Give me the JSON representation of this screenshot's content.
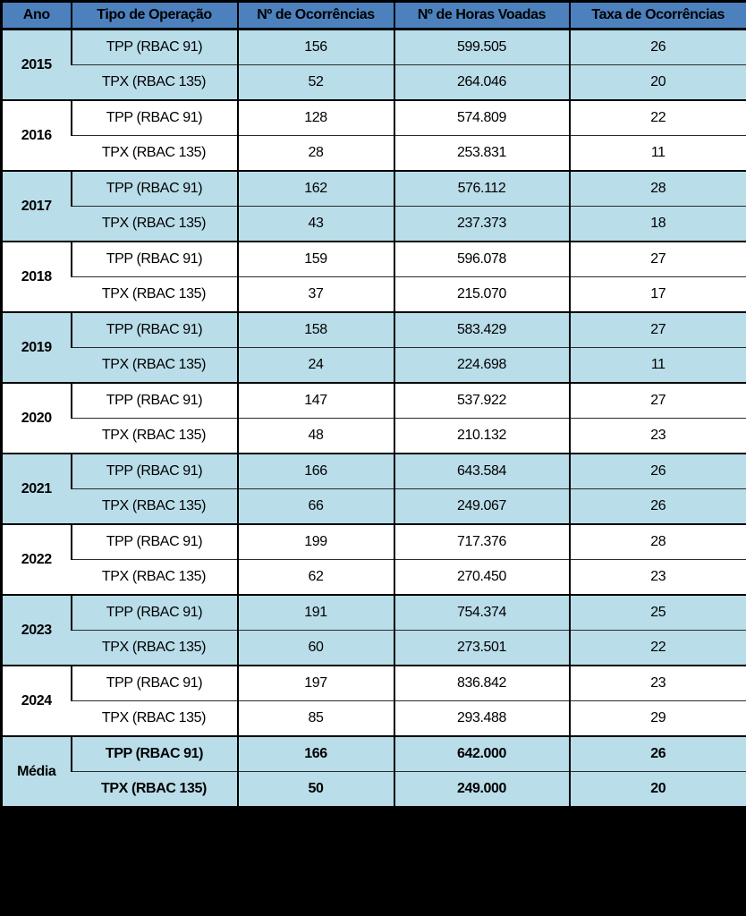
{
  "table": {
    "name": "occurrence-rate-by-operation-type",
    "columns": [
      "Ano",
      "Tipo de Operação",
      "Nº de Ocorrências",
      "Nº de Horas Voadas",
      "Taxa de Ocorrências"
    ],
    "colors": {
      "header_bg": "#4d81bd",
      "shaded_row_bg": "#b9dde9",
      "plain_row_bg": "#ffffff",
      "border": "#000000",
      "page_background": "#000000"
    },
    "groups": [
      {
        "year": "2015",
        "shaded": true,
        "bold": false,
        "entries": [
          {
            "tipo": "TPP (RBAC 91)",
            "ocorrencias": "156",
            "horas": "599.505",
            "taxa": "26"
          },
          {
            "tipo": "TPX (RBAC 135)",
            "ocorrencias": "52",
            "horas": "264.046",
            "taxa": "20"
          }
        ]
      },
      {
        "year": "2016",
        "shaded": false,
        "bold": false,
        "entries": [
          {
            "tipo": "TPP (RBAC 91)",
            "ocorrencias": "128",
            "horas": "574.809",
            "taxa": "22"
          },
          {
            "tipo": "TPX (RBAC 135)",
            "ocorrencias": "28",
            "horas": "253.831",
            "taxa": "11"
          }
        ]
      },
      {
        "year": "2017",
        "shaded": true,
        "bold": false,
        "entries": [
          {
            "tipo": "TPP (RBAC 91)",
            "ocorrencias": "162",
            "horas": "576.112",
            "taxa": "28"
          },
          {
            "tipo": "TPX (RBAC 135)",
            "ocorrencias": "43",
            "horas": "237.373",
            "taxa": "18"
          }
        ]
      },
      {
        "year": "2018",
        "shaded": false,
        "bold": false,
        "entries": [
          {
            "tipo": "TPP (RBAC 91)",
            "ocorrencias": "159",
            "horas": "596.078",
            "taxa": "27"
          },
          {
            "tipo": "TPX (RBAC 135)",
            "ocorrencias": "37",
            "horas": "215.070",
            "taxa": "17"
          }
        ]
      },
      {
        "year": "2019",
        "shaded": true,
        "bold": false,
        "entries": [
          {
            "tipo": "TPP (RBAC 91)",
            "ocorrencias": "158",
            "horas": "583.429",
            "taxa": "27"
          },
          {
            "tipo": "TPX (RBAC 135)",
            "ocorrencias": "24",
            "horas": "224.698",
            "taxa": "11"
          }
        ]
      },
      {
        "year": "2020",
        "shaded": false,
        "bold": false,
        "entries": [
          {
            "tipo": "TPP (RBAC 91)",
            "ocorrencias": "147",
            "horas": "537.922",
            "taxa": "27"
          },
          {
            "tipo": "TPX (RBAC 135)",
            "ocorrencias": "48",
            "horas": "210.132",
            "taxa": "23"
          }
        ]
      },
      {
        "year": "2021",
        "shaded": true,
        "bold": false,
        "entries": [
          {
            "tipo": "TPP (RBAC 91)",
            "ocorrencias": "166",
            "horas": "643.584",
            "taxa": "26"
          },
          {
            "tipo": "TPX (RBAC 135)",
            "ocorrencias": "66",
            "horas": "249.067",
            "taxa": "26"
          }
        ]
      },
      {
        "year": "2022",
        "shaded": false,
        "bold": false,
        "entries": [
          {
            "tipo": "TPP (RBAC 91)",
            "ocorrencias": "199",
            "horas": "717.376",
            "taxa": "28"
          },
          {
            "tipo": "TPX (RBAC 135)",
            "ocorrencias": "62",
            "horas": "270.450",
            "taxa": "23"
          }
        ]
      },
      {
        "year": "2023",
        "shaded": true,
        "bold": false,
        "entries": [
          {
            "tipo": "TPP (RBAC 91)",
            "ocorrencias": "191",
            "horas": "754.374",
            "taxa": "25"
          },
          {
            "tipo": "TPX (RBAC 135)",
            "ocorrencias": "60",
            "horas": "273.501",
            "taxa": "22"
          }
        ]
      },
      {
        "year": "2024",
        "shaded": false,
        "bold": false,
        "entries": [
          {
            "tipo": "TPP (RBAC 91)",
            "ocorrencias": "197",
            "horas": "836.842",
            "taxa": "23"
          },
          {
            "tipo": "TPX (RBAC 135)",
            "ocorrencias": "85",
            "horas": "293.488",
            "taxa": "29"
          }
        ]
      },
      {
        "year": "Média",
        "shaded": true,
        "bold": true,
        "entries": [
          {
            "tipo": "TPP (RBAC 91)",
            "ocorrencias": "166",
            "horas": "642.000",
            "taxa": "26"
          },
          {
            "tipo": "TPX (RBAC 135)",
            "ocorrencias": "50",
            "horas": "249.000",
            "taxa": "20"
          }
        ]
      }
    ]
  }
}
